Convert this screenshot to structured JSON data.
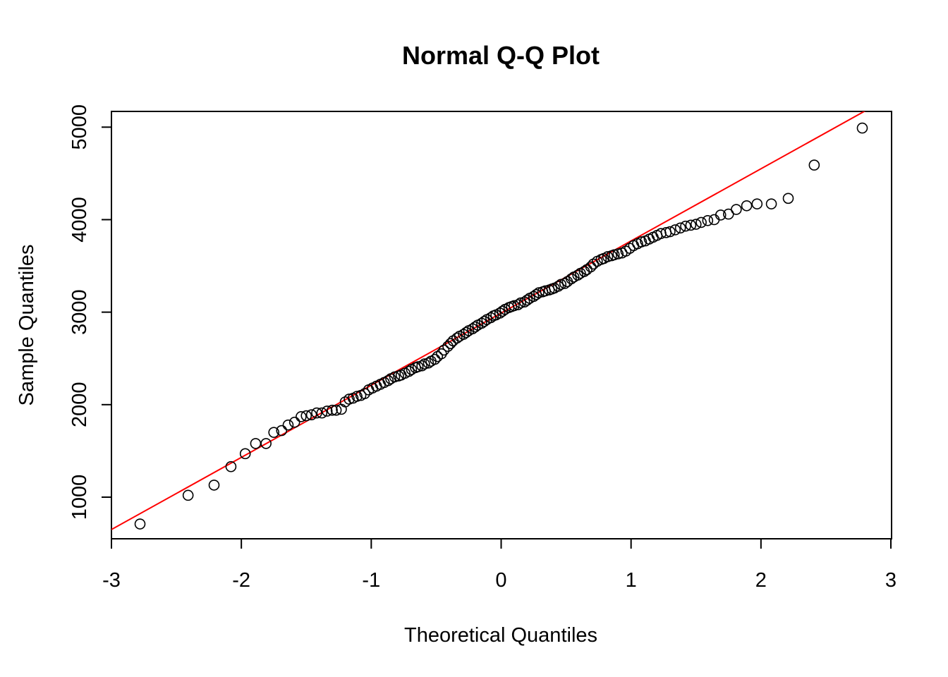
{
  "chart_data": {
    "type": "scatter",
    "title": "Normal Q-Q Plot",
    "xlabel": "Theoretical Quantiles",
    "ylabel": "Sample Quantiles",
    "xlim": [
      -3,
      3
    ],
    "ylim": [
      550,
      5170
    ],
    "x_ticks": [
      -3,
      -2,
      -1,
      0,
      1,
      2,
      3
    ],
    "x_tick_labels": [
      "-3",
      "-2",
      "-1",
      "0",
      "1",
      "2",
      "3"
    ],
    "y_ticks": [
      1000,
      2000,
      3000,
      4000,
      5000
    ],
    "y_tick_labels": [
      "1000",
      "2000",
      "3000",
      "4000",
      "5000"
    ],
    "grid": false,
    "legend": "none",
    "point_color": "#000000",
    "reference_line": {
      "color": "#ff0000",
      "intercept": 2990,
      "slope": 780
    },
    "points": [
      [
        -2.78,
        710
      ],
      [
        -2.41,
        1020
      ],
      [
        -2.21,
        1130
      ],
      [
        -2.08,
        1330
      ],
      [
        -1.97,
        1470
      ],
      [
        -1.89,
        1580
      ],
      [
        -1.81,
        1580
      ],
      [
        -1.75,
        1700
      ],
      [
        -1.69,
        1720
      ],
      [
        -1.64,
        1780
      ],
      [
        -1.59,
        1810
      ],
      [
        -1.54,
        1870
      ],
      [
        -1.5,
        1880
      ],
      [
        -1.46,
        1890
      ],
      [
        -1.42,
        1910
      ],
      [
        -1.38,
        1910
      ],
      [
        -1.34,
        1930
      ],
      [
        -1.3,
        1940
      ],
      [
        -1.27,
        1940
      ],
      [
        -1.23,
        1950
      ],
      [
        -1.2,
        2030
      ],
      [
        -1.17,
        2060
      ],
      [
        -1.14,
        2070
      ],
      [
        -1.11,
        2090
      ],
      [
        -1.08,
        2100
      ],
      [
        -1.05,
        2120
      ],
      [
        -1.02,
        2160
      ],
      [
        -0.99,
        2180
      ],
      [
        -0.96,
        2200
      ],
      [
        -0.93,
        2220
      ],
      [
        -0.9,
        2240
      ],
      [
        -0.87,
        2260
      ],
      [
        -0.85,
        2280
      ],
      [
        -0.82,
        2300
      ],
      [
        -0.79,
        2310
      ],
      [
        -0.77,
        2320
      ],
      [
        -0.74,
        2340
      ],
      [
        -0.71,
        2360
      ],
      [
        -0.69,
        2380
      ],
      [
        -0.66,
        2400
      ],
      [
        -0.64,
        2410
      ],
      [
        -0.61,
        2420
      ],
      [
        -0.59,
        2440
      ],
      [
        -0.56,
        2450
      ],
      [
        -0.54,
        2470
      ],
      [
        -0.51,
        2490
      ],
      [
        -0.49,
        2520
      ],
      [
        -0.46,
        2550
      ],
      [
        -0.44,
        2590
      ],
      [
        -0.41,
        2630
      ],
      [
        -0.39,
        2660
      ],
      [
        -0.37,
        2690
      ],
      [
        -0.34,
        2720
      ],
      [
        -0.32,
        2740
      ],
      [
        -0.29,
        2760
      ],
      [
        -0.27,
        2780
      ],
      [
        -0.25,
        2800
      ],
      [
        -0.22,
        2820
      ],
      [
        -0.2,
        2840
      ],
      [
        -0.18,
        2860
      ],
      [
        -0.15,
        2880
      ],
      [
        -0.13,
        2900
      ],
      [
        -0.11,
        2920
      ],
      [
        -0.08,
        2940
      ],
      [
        -0.06,
        2960
      ],
      [
        -0.04,
        2970
      ],
      [
        -0.01,
        2990
      ],
      [
        0.01,
        3010
      ],
      [
        0.03,
        3030
      ],
      [
        0.06,
        3050
      ],
      [
        0.08,
        3060
      ],
      [
        0.1,
        3070
      ],
      [
        0.13,
        3080
      ],
      [
        0.15,
        3100
      ],
      [
        0.18,
        3110
      ],
      [
        0.2,
        3130
      ],
      [
        0.22,
        3150
      ],
      [
        0.25,
        3170
      ],
      [
        0.27,
        3190
      ],
      [
        0.29,
        3210
      ],
      [
        0.32,
        3220
      ],
      [
        0.34,
        3230
      ],
      [
        0.37,
        3240
      ],
      [
        0.39,
        3250
      ],
      [
        0.41,
        3260
      ],
      [
        0.44,
        3280
      ],
      [
        0.46,
        3300
      ],
      [
        0.49,
        3310
      ],
      [
        0.51,
        3330
      ],
      [
        0.54,
        3360
      ],
      [
        0.56,
        3380
      ],
      [
        0.59,
        3400
      ],
      [
        0.61,
        3420
      ],
      [
        0.64,
        3440
      ],
      [
        0.66,
        3460
      ],
      [
        0.69,
        3490
      ],
      [
        0.71,
        3520
      ],
      [
        0.74,
        3550
      ],
      [
        0.77,
        3570
      ],
      [
        0.79,
        3580
      ],
      [
        0.82,
        3600
      ],
      [
        0.85,
        3610
      ],
      [
        0.87,
        3620
      ],
      [
        0.9,
        3630
      ],
      [
        0.93,
        3640
      ],
      [
        0.96,
        3660
      ],
      [
        0.99,
        3690
      ],
      [
        1.02,
        3720
      ],
      [
        1.05,
        3740
      ],
      [
        1.08,
        3760
      ],
      [
        1.11,
        3770
      ],
      [
        1.14,
        3790
      ],
      [
        1.17,
        3810
      ],
      [
        1.2,
        3830
      ],
      [
        1.23,
        3850
      ],
      [
        1.27,
        3860
      ],
      [
        1.3,
        3870
      ],
      [
        1.34,
        3890
      ],
      [
        1.38,
        3910
      ],
      [
        1.42,
        3930
      ],
      [
        1.46,
        3940
      ],
      [
        1.5,
        3950
      ],
      [
        1.54,
        3970
      ],
      [
        1.59,
        3990
      ],
      [
        1.64,
        4000
      ],
      [
        1.69,
        4050
      ],
      [
        1.75,
        4060
      ],
      [
        1.81,
        4110
      ],
      [
        1.89,
        4150
      ],
      [
        1.97,
        4170
      ],
      [
        2.08,
        4170
      ],
      [
        2.21,
        4230
      ],
      [
        2.41,
        4590
      ],
      [
        2.78,
        4990
      ]
    ]
  }
}
